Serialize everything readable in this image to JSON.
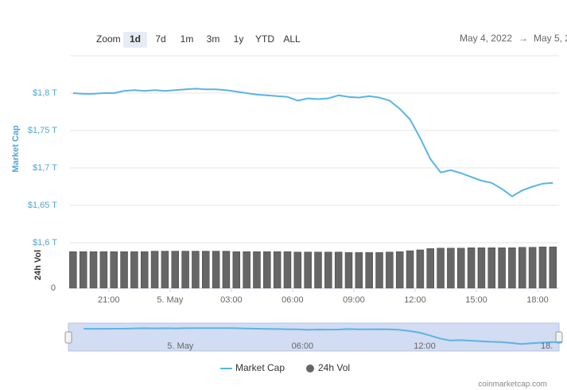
{
  "toolbar": {
    "zoom_label": "Zoom",
    "buttons": [
      "1d",
      "7d",
      "1m",
      "3m",
      "1y",
      "YTD",
      "ALL"
    ],
    "selected_button": 0,
    "date_from": "May 4, 2022",
    "arrow": "→",
    "date_to": "May 5, 2"
  },
  "chart_data": {
    "type": "line",
    "x": [
      19.25,
      19.75,
      20.25,
      20.75,
      21.25,
      21.75,
      22.25,
      22.75,
      23.25,
      23.75,
      24.25,
      24.75,
      25.25,
      25.75,
      26.25,
      26.75,
      27.25,
      27.75,
      28.25,
      28.75,
      29.25,
      29.75,
      30.25,
      30.75,
      31.25,
      31.75,
      32.25,
      32.75,
      33.25,
      33.75,
      34.25,
      34.75,
      35.25,
      35.75,
      36.25,
      36.75,
      37.25,
      37.75,
      38.25,
      38.75,
      39.25,
      39.75,
      40.25,
      40.75,
      41.25,
      41.75,
      42.25,
      42.75
    ],
    "series": [
      {
        "name": "Market Cap",
        "color": "#5ab4e4",
        "values": [
          1.8,
          1.799,
          1.799,
          1.8,
          1.8,
          1.803,
          1.804,
          1.803,
          1.804,
          1.803,
          1.804,
          1.805,
          1.806,
          1.805,
          1.805,
          1.804,
          1.802,
          1.8,
          1.798,
          1.797,
          1.796,
          1.795,
          1.79,
          1.793,
          1.792,
          1.793,
          1.797,
          1.795,
          1.794,
          1.796,
          1.794,
          1.79,
          1.779,
          1.765,
          1.74,
          1.712,
          1.694,
          1.697,
          1.693,
          1.688,
          1.683,
          1.68,
          1.672,
          1.662,
          1.67,
          1.675,
          1.679,
          1.68
        ]
      },
      {
        "name": "24h Vol",
        "color": "#666666",
        "type": "bar",
        "axis": "y2",
        "values": [
          0.085,
          0.085,
          0.085,
          0.085,
          0.085,
          0.085,
          0.085,
          0.085,
          0.086,
          0.086,
          0.086,
          0.086,
          0.086,
          0.086,
          0.086,
          0.086,
          0.085,
          0.085,
          0.085,
          0.085,
          0.085,
          0.085,
          0.084,
          0.084,
          0.084,
          0.084,
          0.084,
          0.083,
          0.083,
          0.083,
          0.083,
          0.084,
          0.085,
          0.087,
          0.089,
          0.092,
          0.093,
          0.093,
          0.093,
          0.094,
          0.094,
          0.094,
          0.094,
          0.094,
          0.095,
          0.095,
          0.096,
          0.096
        ]
      }
    ],
    "ylabel": "Market Cap",
    "y2label": "24h Vol",
    "xlim": [
      19.1,
      43.05
    ],
    "xticks": [
      {
        "value": 21,
        "label": "21:00"
      },
      {
        "value": 24,
        "label": "5. May"
      },
      {
        "value": 27,
        "label": "03:00"
      },
      {
        "value": 30,
        "label": "06:00"
      },
      {
        "value": 33,
        "label": "09:00"
      },
      {
        "value": 36,
        "label": "12:00"
      },
      {
        "value": 39,
        "label": "15:00"
      },
      {
        "value": 42,
        "label": "18:00"
      }
    ],
    "ylim": [
      1.6,
      1.85
    ],
    "yticks": [
      {
        "value": 1.6,
        "label": "$1,6 T"
      },
      {
        "value": 1.65,
        "label": "$1,65 T"
      },
      {
        "value": 1.7,
        "label": "$1,7 T"
      },
      {
        "value": 1.75,
        "label": "$1,75 T"
      },
      {
        "value": 1.8,
        "label": "$1,8 T"
      }
    ],
    "y2lim": [
      0,
      0.1
    ],
    "y2ticks": [
      0
    ],
    "grid": true,
    "navigator": {
      "xlim": [
        18.5,
        42.6
      ],
      "xticks": [
        {
          "value": 24,
          "label": "5. May"
        },
        {
          "value": 30,
          "label": "06:00"
        },
        {
          "value": 36,
          "label": "12:00"
        },
        {
          "value": 42,
          "label": "18."
        }
      ]
    }
  },
  "footer": {
    "credit": "coinmarketcap.com"
  }
}
